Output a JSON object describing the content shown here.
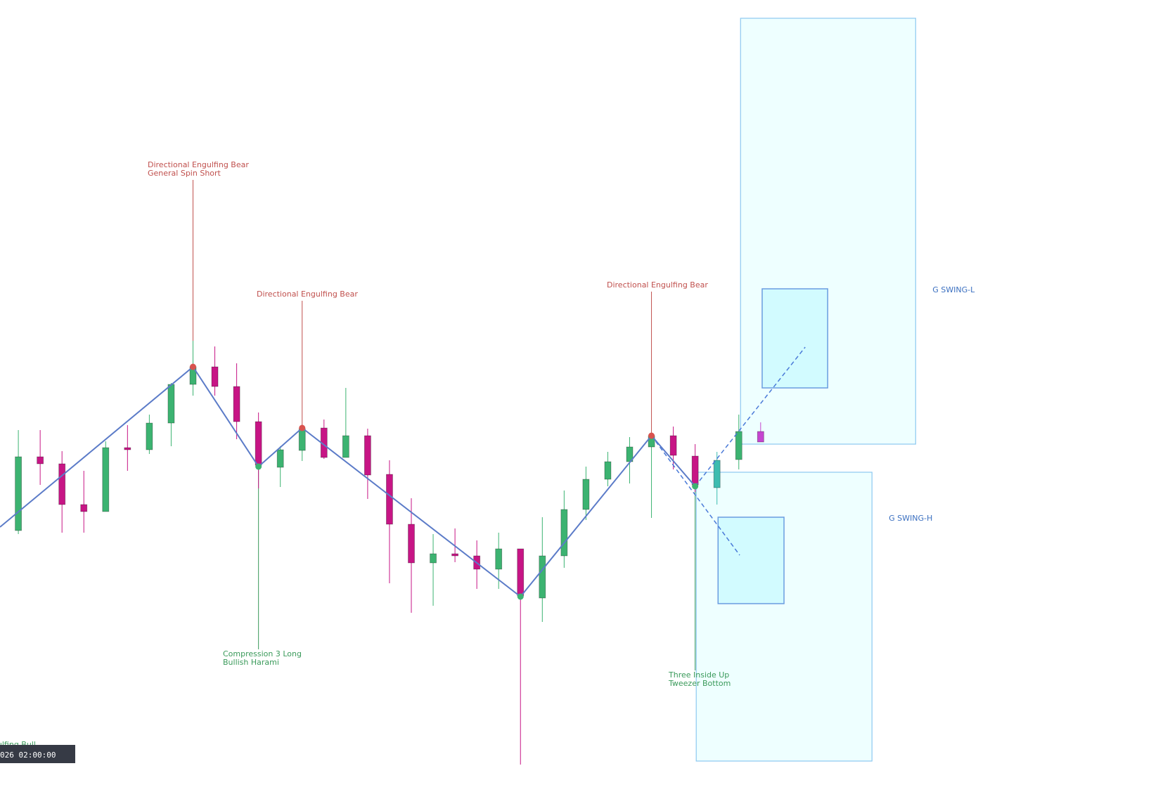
{
  "chart_data": {
    "type": "candlestick",
    "ylim": [
      0,
      113.7
    ],
    "xlim": [
      -0.84,
      51.88
    ],
    "x": [
      0,
      1,
      2,
      3,
      4,
      5,
      6,
      7,
      8,
      9,
      10,
      11,
      12,
      13,
      14,
      15,
      16,
      17,
      18,
      19,
      20,
      21,
      22,
      23,
      24,
      25,
      26,
      27,
      28,
      29,
      30,
      31,
      32,
      33,
      34
    ],
    "open": [
      38.2,
      48.7,
      47.7,
      41.9,
      40.9,
      50.0,
      49.7,
      53.5,
      59.0,
      61.5,
      58.7,
      53.7,
      47.2,
      49.6,
      52.8,
      48.6,
      51.7,
      46.2,
      39.1,
      33.6,
      34.9,
      34.6,
      32.7,
      35.6,
      28.6,
      34.6,
      41.2,
      45.5,
      48.0,
      50.1,
      51.7,
      48.8,
      44.3,
      48.3,
      52.3
    ],
    "high": [
      52.5,
      52.5,
      49.5,
      46.7,
      50.9,
      53.2,
      54.7,
      59.2,
      65.2,
      64.4,
      62.0,
      55.0,
      50.2,
      53.2,
      54.0,
      58.5,
      52.7,
      48.2,
      42.8,
      37.7,
      38.5,
      36.8,
      37.9,
      35.6,
      40.1,
      43.9,
      47.3,
      49.4,
      51.5,
      52.0,
      53.0,
      50.5,
      49.4,
      54.7,
      53.6
    ],
    "low": [
      37.7,
      44.7,
      37.9,
      37.9,
      40.9,
      46.7,
      49.1,
      50.2,
      57.4,
      57.4,
      51.2,
      44.2,
      44.4,
      48.1,
      48.4,
      48.6,
      42.7,
      30.7,
      26.5,
      27.5,
      33.7,
      29.9,
      29.9,
      4.9,
      25.2,
      32.9,
      39.7,
      44.5,
      44.9,
      40.0,
      46.9,
      43.7,
      41.9,
      46.9,
      50.8
    ],
    "close": [
      48.7,
      47.7,
      41.9,
      40.9,
      50.0,
      49.7,
      53.5,
      59.0,
      61.5,
      58.7,
      53.7,
      47.5,
      49.7,
      52.7,
      48.6,
      51.7,
      46.1,
      39.1,
      33.6,
      34.9,
      34.6,
      32.7,
      35.6,
      28.9,
      34.6,
      41.2,
      45.5,
      48.0,
      50.1,
      51.7,
      48.9,
      44.7,
      48.2,
      52.3,
      50.8
    ],
    "bull_color": "#3cb371",
    "bear_color": "#c71585",
    "special_colors": [
      {
        "index": 32,
        "color": "#3cbcb0"
      },
      {
        "index": 34,
        "color": "#c545d0"
      }
    ],
    "zigzag": {
      "color": "#5b7bc8",
      "x": [
        -0.84,
        8,
        11,
        13,
        23,
        29,
        31
      ],
      "values": [
        38.7,
        61.5,
        47.3,
        52.8,
        28.8,
        51.7,
        44.5
      ]
    },
    "projections": [
      {
        "x": [
          31,
          36.04
        ],
        "values": [
          44.5,
          64.3
        ]
      },
      {
        "x": [
          29,
          33.04
        ],
        "values": [
          51.7,
          34.7
        ]
      }
    ],
    "annotations": [
      {
        "x": 8,
        "value": 61.5,
        "text": [
          "Directional Engulfing Bear",
          "General Spin Short"
        ],
        "color": "#c0504d"
      },
      {
        "x": 13,
        "value": 52.8,
        "text": [
          "Directional Engulfing Bear"
        ],
        "color": "#c0504d"
      },
      {
        "x": 29,
        "value": 51.7,
        "text": [
          "Directional Engulfing Bear"
        ],
        "color": "#c0504d"
      },
      {
        "x": 11,
        "value": 47.3,
        "text": [
          "Compression 3 Long",
          "Bullish Harami"
        ],
        "color": "#3a9a5a"
      },
      {
        "x": 31,
        "value": 44.5,
        "text": [
          "Three Inside Up",
          "Tweezer Bottom"
        ],
        "color": "#3a9a5a"
      },
      {
        "x": -1,
        "value": 7.8,
        "text": [
          "Engulfing Bull"
        ],
        "color": "#3a9a5a"
      }
    ],
    "zones": [
      {
        "label": "G SWING-L",
        "outer": {
          "x": [
            33.08,
            41.1
          ],
          "values": [
            111.1,
            50.5
          ]
        },
        "inner": {
          "x": [
            34.07,
            37.07
          ],
          "values": [
            72.6,
            58.5
          ]
        }
      },
      {
        "label": "G SWING-H",
        "outer": {
          "x": [
            31.05,
            39.1
          ],
          "values": [
            46.5,
            5.4
          ]
        },
        "inner": {
          "x": [
            32.05,
            35.07
          ],
          "values": [
            40.1,
            27.8
          ]
        }
      }
    ],
    "time_label": "026 02:00:00"
  }
}
